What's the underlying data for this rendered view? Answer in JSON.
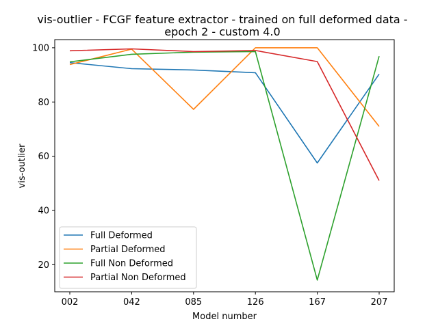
{
  "chart_data": {
    "type": "line",
    "title_line1": "vis-outlier - FCGF feature extractor -  trained on full deformed data -",
    "title_line2": "epoch 2 - custom 4.0",
    "xlabel": "Model number",
    "ylabel": "vis-outlier",
    "categories": [
      "002",
      "042",
      "085",
      "126",
      "167",
      "207"
    ],
    "ylim": [
      10,
      103
    ],
    "yticks": [
      20,
      40,
      60,
      80,
      100
    ],
    "legend_position": "lower-left",
    "grid": false,
    "series": [
      {
        "name": "Full Deformed",
        "color": "#1f77b4",
        "values": [
          94.5,
          92.3,
          91.8,
          90.8,
          57.5,
          90.3
        ]
      },
      {
        "name": "Partial Deformed",
        "color": "#ff7f0e",
        "values": [
          93.8,
          99.5,
          77.3,
          100.0,
          100.0,
          71.0
        ]
      },
      {
        "name": "Full Non Deformed",
        "color": "#2ca02c",
        "values": [
          94.8,
          97.6,
          98.4,
          98.6,
          14.3,
          96.9
        ]
      },
      {
        "name": "Partial Non Deformed",
        "color": "#d62728",
        "values": [
          98.9,
          99.6,
          98.6,
          99.0,
          94.9,
          51.0
        ]
      }
    ]
  }
}
